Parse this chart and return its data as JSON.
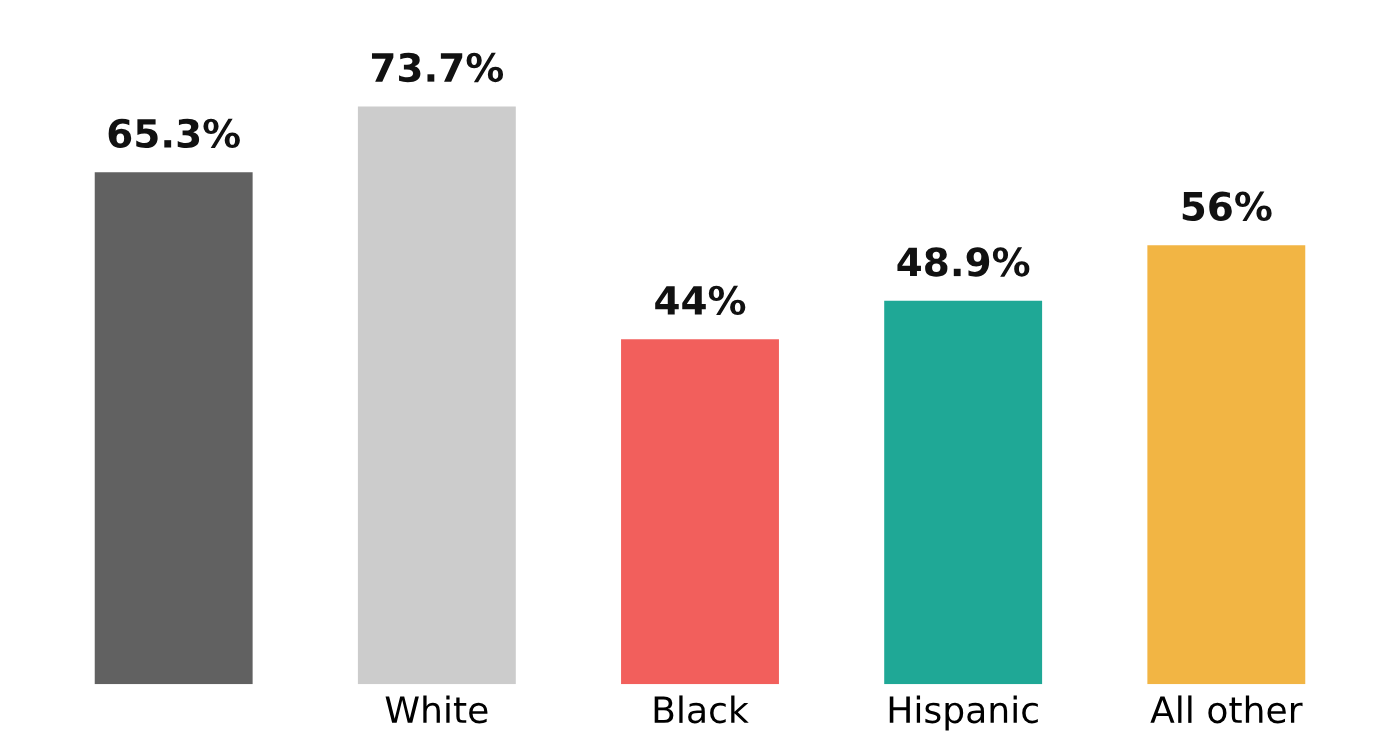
{
  "chart_data": {
    "type": "bar",
    "categories": [
      null,
      "White",
      "Black",
      "Hispanic",
      "All other"
    ],
    "values": [
      65.3,
      73.7,
      44,
      48.9,
      56
    ],
    "colors": [
      "#616161",
      "#cccccc",
      "#f25f5c",
      "#1fa896",
      "#f2b544"
    ],
    "value_labels": [
      "65.3%",
      "73.7%",
      "44%",
      "48.9%",
      "56%"
    ],
    "grid": false,
    "legend": false
  }
}
